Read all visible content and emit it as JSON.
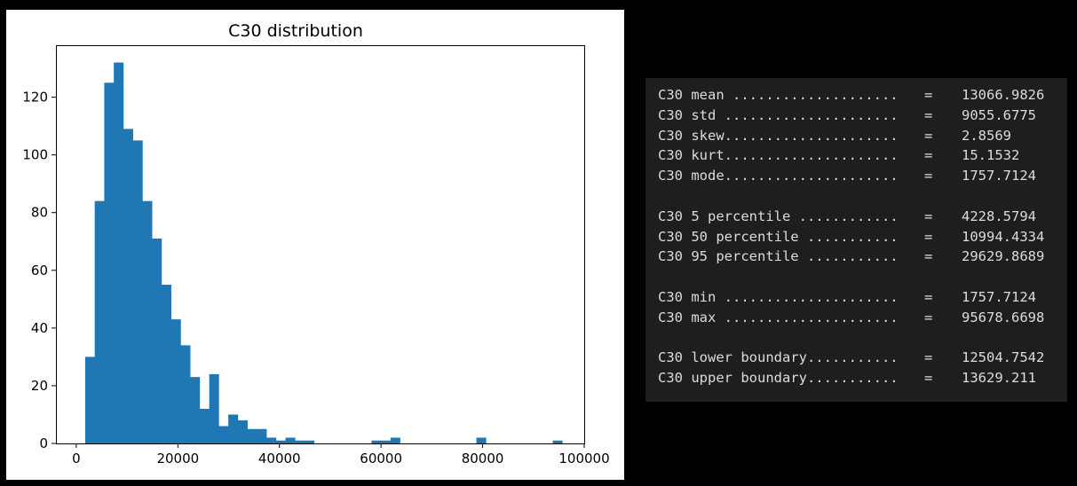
{
  "chart_data": {
    "type": "histogram",
    "title": "C30 distribution",
    "xlabel": "",
    "ylabel": "",
    "xlim": [
      -4000,
      100000
    ],
    "ylim": [
      0,
      138
    ],
    "x_ticks": [
      0,
      20000,
      40000,
      60000,
      80000,
      100000
    ],
    "x_tick_labels": [
      "0",
      "20000",
      "40000",
      "60000",
      "80000",
      "100000"
    ],
    "y_ticks": [
      0,
      20,
      40,
      60,
      80,
      100,
      120
    ],
    "y_tick_labels": [
      "0",
      "20",
      "40",
      "60",
      "80",
      "100",
      "120"
    ],
    "bin_start": 1757.7124,
    "bin_end": 95678.6698,
    "bar_color": "#1f77b4",
    "counts": [
      30,
      84,
      125,
      132,
      109,
      105,
      84,
      71,
      55,
      43,
      34,
      23,
      12,
      24,
      6,
      10,
      8,
      5,
      5,
      2,
      1,
      2,
      1,
      1,
      0,
      0,
      0,
      0,
      0,
      0,
      1,
      1,
      2,
      0,
      0,
      0,
      0,
      0,
      0,
      0,
      0,
      2,
      0,
      0,
      0,
      0,
      0,
      0,
      0,
      1
    ]
  },
  "stats": {
    "groups": [
      [
        {
          "label": "C30 mean ....................",
          "value": "13066.9826"
        },
        {
          "label": "C30 std .....................",
          "value": "9055.6775"
        },
        {
          "label": "C30 skew.....................",
          "value": "2.8569"
        },
        {
          "label": "C30 kurt.....................",
          "value": "15.1532"
        },
        {
          "label": "C30 mode.....................",
          "value": "1757.7124"
        }
      ],
      [
        {
          "label": "C30 5 percentile ............",
          "value": "4228.5794"
        },
        {
          "label": "C30 50 percentile ...........",
          "value": "10994.4334"
        },
        {
          "label": "C30 95 percentile ...........",
          "value": "29629.8689"
        }
      ],
      [
        {
          "label": "C30 min .....................",
          "value": "1757.7124"
        },
        {
          "label": "C30 max .....................",
          "value": "95678.6698"
        }
      ],
      [
        {
          "label": "C30 lower boundary...........",
          "value": "12504.7542"
        },
        {
          "label": "C30 upper boundary...........",
          "value": "13629.211"
        }
      ]
    ],
    "equals": "="
  }
}
